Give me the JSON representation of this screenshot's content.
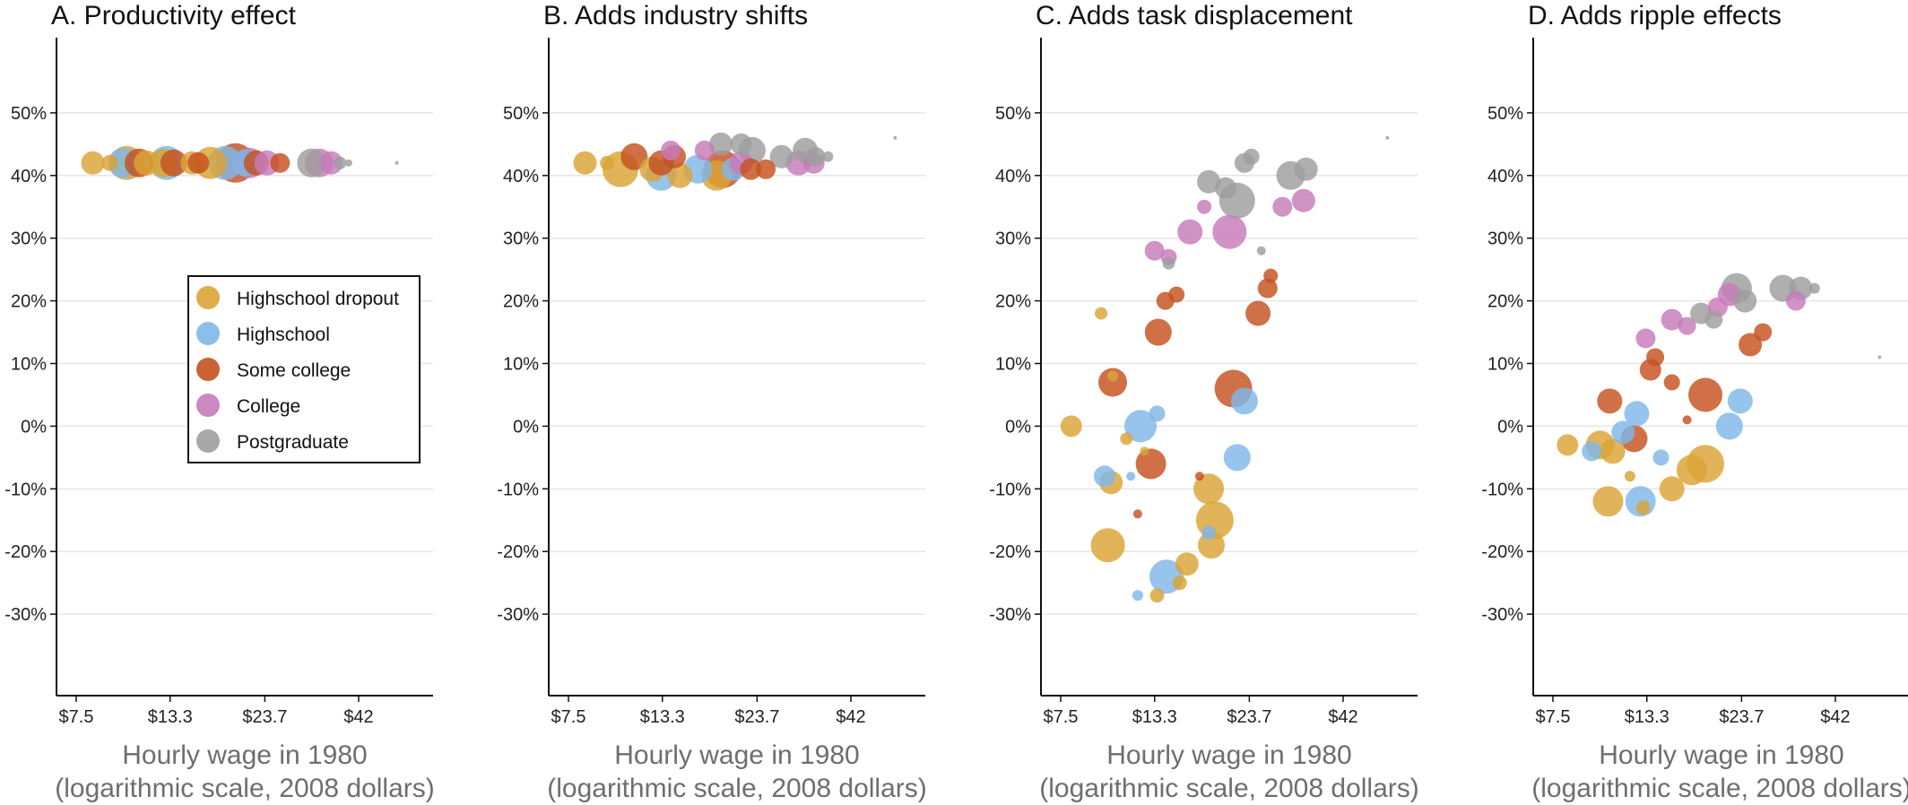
{
  "colors": {
    "Highschool dropout": "#dba434",
    "Highschool": "#7fb7e8",
    "Some college": "#c4511e",
    "College": "#c77bba",
    "Postgraduate": "#9e9e9e"
  },
  "legend": [
    "Highschool dropout",
    "Highschool",
    "Some college",
    "College",
    "Postgraduate"
  ],
  "chart_data": [
    {
      "type": "scatter",
      "title": "A. Productivity effect",
      "xlabel": "Hourly wage in 1980",
      "xlabel2": "(logarithmic scale, 2008 dollars)",
      "xscale": "log",
      "xticks": [
        7.5,
        13.3,
        23.7,
        42
      ],
      "xtick_labels": [
        "$7.5",
        "$13.3",
        "$23.7",
        "$42"
      ],
      "yticks": [
        50,
        40,
        30,
        20,
        10,
        0,
        -10,
        -20,
        -30
      ],
      "ytick_labels": [
        "50%",
        "40%",
        "30%",
        "20%",
        "10%",
        "0%",
        "-10%",
        "-20%",
        "-30%"
      ],
      "ylim": [
        -43,
        62
      ],
      "grid": true,
      "legend_position": "inside-center",
      "points": [
        {
          "g": "Highschool dropout",
          "x": 8.3,
          "y": 42,
          "s": 13
        },
        {
          "g": "Highschool dropout",
          "x": 9.2,
          "y": 42,
          "s": 9
        },
        {
          "g": "Highschool dropout",
          "x": 10.2,
          "y": 42,
          "s": 19
        },
        {
          "g": "Highschool dropout",
          "x": 11.5,
          "y": 42,
          "s": 14
        },
        {
          "g": "Highschool dropout",
          "x": 12.8,
          "y": 42,
          "s": 16
        },
        {
          "g": "Highschool dropout",
          "x": 15.2,
          "y": 42,
          "s": 13
        },
        {
          "g": "Highschool dropout",
          "x": 17.0,
          "y": 42,
          "s": 18
        },
        {
          "g": "Highschool",
          "x": 10.0,
          "y": 42,
          "s": 17
        },
        {
          "g": "Highschool",
          "x": 13.0,
          "y": 42,
          "s": 19
        },
        {
          "g": "Highschool",
          "x": 18.6,
          "y": 42,
          "s": 19
        },
        {
          "g": "Highschool",
          "x": 21.0,
          "y": 42,
          "s": 15
        },
        {
          "g": "Some college",
          "x": 11.0,
          "y": 42,
          "s": 16
        },
        {
          "g": "Some college",
          "x": 13.6,
          "y": 42,
          "s": 15
        },
        {
          "g": "Some college",
          "x": 15.8,
          "y": 42,
          "s": 12
        },
        {
          "g": "Some college",
          "x": 19.8,
          "y": 42,
          "s": 22
        },
        {
          "g": "Some college",
          "x": 22.5,
          "y": 42,
          "s": 14
        },
        {
          "g": "Some college",
          "x": 26.0,
          "y": 42,
          "s": 11
        },
        {
          "g": "College",
          "x": 21.6,
          "y": 42,
          "s": 17
        },
        {
          "g": "College",
          "x": 24.0,
          "y": 42,
          "s": 14
        },
        {
          "g": "College",
          "x": 33.0,
          "y": 42,
          "s": 16
        },
        {
          "g": "College",
          "x": 35.5,
          "y": 42,
          "s": 13
        },
        {
          "g": "Postgraduate",
          "x": 31.5,
          "y": 42,
          "s": 16
        },
        {
          "g": "Postgraduate",
          "x": 37.5,
          "y": 42,
          "s": 7
        },
        {
          "g": "Postgraduate",
          "x": 39.5,
          "y": 42,
          "s": 4
        },
        {
          "g": "Postgraduate",
          "x": 53.0,
          "y": 42,
          "s": 2
        }
      ]
    },
    {
      "type": "scatter",
      "title": "B. Adds industry shifts",
      "xlabel": "Hourly wage in 1980",
      "xlabel2": "(logarithmic scale, 2008 dollars)",
      "xscale": "log",
      "xticks": [
        7.5,
        13.3,
        23.7,
        42
      ],
      "xtick_labels": [
        "$7.5",
        "$13.3",
        "$23.7",
        "$42"
      ],
      "yticks": [
        50,
        40,
        30,
        20,
        10,
        0,
        -10,
        -20,
        -30
      ],
      "ytick_labels": [
        "50%",
        "40%",
        "30%",
        "20%",
        "10%",
        "0%",
        "-10%",
        "-20%",
        "-30%"
      ],
      "ylim": [
        -43,
        62
      ],
      "grid": true,
      "points": [
        {
          "g": "Highschool dropout",
          "x": 8.3,
          "y": 42,
          "s": 13
        },
        {
          "g": "Highschool dropout",
          "x": 9.5,
          "y": 42,
          "s": 8
        },
        {
          "g": "Highschool dropout",
          "x": 10.3,
          "y": 41,
          "s": 20
        },
        {
          "g": "Highschool dropout",
          "x": 12.5,
          "y": 41,
          "s": 14
        },
        {
          "g": "Highschool dropout",
          "x": 14.8,
          "y": 40,
          "s": 14
        },
        {
          "g": "Highschool dropout",
          "x": 18.5,
          "y": 40,
          "s": 17
        },
        {
          "g": "Highschool",
          "x": 13.2,
          "y": 40,
          "s": 17
        },
        {
          "g": "Highschool",
          "x": 16.5,
          "y": 41,
          "s": 16
        },
        {
          "g": "Highschool",
          "x": 20.5,
          "y": 41,
          "s": 13
        },
        {
          "g": "Some college",
          "x": 11.2,
          "y": 43,
          "s": 15
        },
        {
          "g": "Some college",
          "x": 13.2,
          "y": 42,
          "s": 14
        },
        {
          "g": "Some college",
          "x": 14.3,
          "y": 43,
          "s": 13
        },
        {
          "g": "Some college",
          "x": 19.2,
          "y": 41,
          "s": 21
        },
        {
          "g": "Some college",
          "x": 22.8,
          "y": 41,
          "s": 12
        },
        {
          "g": "Some college",
          "x": 25.0,
          "y": 41,
          "s": 11
        },
        {
          "g": "College",
          "x": 14.0,
          "y": 44,
          "s": 11
        },
        {
          "g": "College",
          "x": 17.2,
          "y": 44,
          "s": 11
        },
        {
          "g": "College",
          "x": 21.5,
          "y": 42,
          "s": 13
        },
        {
          "g": "College",
          "x": 30.5,
          "y": 42,
          "s": 14
        },
        {
          "g": "College",
          "x": 33.5,
          "y": 42,
          "s": 12
        },
        {
          "g": "Postgraduate",
          "x": 19.0,
          "y": 45,
          "s": 13
        },
        {
          "g": "Postgraduate",
          "x": 21.5,
          "y": 45,
          "s": 12
        },
        {
          "g": "Postgraduate",
          "x": 23.0,
          "y": 44,
          "s": 15
        },
        {
          "g": "Postgraduate",
          "x": 27.5,
          "y": 43,
          "s": 13
        },
        {
          "g": "Postgraduate",
          "x": 31.8,
          "y": 44,
          "s": 14
        },
        {
          "g": "Postgraduate",
          "x": 33.8,
          "y": 43,
          "s": 11
        },
        {
          "g": "Postgraduate",
          "x": 36.5,
          "y": 43,
          "s": 6
        },
        {
          "g": "Postgraduate",
          "x": 55.0,
          "y": 46,
          "s": 2
        }
      ]
    },
    {
      "type": "scatter",
      "title": "C. Adds task displacement",
      "xlabel": "Hourly wage in 1980",
      "xlabel2": "(logarithmic scale, 2008 dollars)",
      "xscale": "log",
      "xticks": [
        7.5,
        13.3,
        23.7,
        42
      ],
      "xtick_labels": [
        "$7.5",
        "$13.3",
        "$23.7",
        "$42"
      ],
      "yticks": [
        50,
        40,
        30,
        20,
        10,
        0,
        -10,
        -20,
        -30
      ],
      "ytick_labels": [
        "50%",
        "40%",
        "30%",
        "20%",
        "10%",
        "0%",
        "-10%",
        "-20%",
        "-30%"
      ],
      "ylim": [
        -43,
        62
      ],
      "grid": true,
      "points": [
        {
          "g": "Highschool dropout",
          "x": 8.0,
          "y": 0,
          "s": 12
        },
        {
          "g": "Highschool dropout",
          "x": 10.2,
          "y": -9,
          "s": 13
        },
        {
          "g": "Highschool dropout",
          "x": 10.0,
          "y": -19,
          "s": 19
        },
        {
          "g": "Highschool dropout",
          "x": 9.6,
          "y": 18,
          "s": 7
        },
        {
          "g": "Highschool dropout",
          "x": 10.3,
          "y": 8,
          "s": 6
        },
        {
          "g": "Highschool dropout",
          "x": 11.2,
          "y": -2,
          "s": 7
        },
        {
          "g": "Highschool dropout",
          "x": 13.5,
          "y": -27,
          "s": 8
        },
        {
          "g": "Highschool dropout",
          "x": 15.5,
          "y": -25,
          "s": 8
        },
        {
          "g": "Highschool dropout",
          "x": 16.2,
          "y": -22,
          "s": 13
        },
        {
          "g": "Highschool dropout",
          "x": 18.5,
          "y": -10,
          "s": 17
        },
        {
          "g": "Highschool dropout",
          "x": 19.2,
          "y": -15,
          "s": 21
        },
        {
          "g": "Highschool dropout",
          "x": 18.8,
          "y": -19,
          "s": 15
        },
        {
          "g": "Highschool dropout",
          "x": 12.5,
          "y": -4,
          "s": 5
        },
        {
          "g": "Highschool",
          "x": 9.8,
          "y": -8,
          "s": 12
        },
        {
          "g": "Highschool",
          "x": 12.2,
          "y": 0,
          "s": 18
        },
        {
          "g": "Highschool",
          "x": 13.5,
          "y": 2,
          "s": 9
        },
        {
          "g": "Highschool",
          "x": 14.3,
          "y": -24,
          "s": 19
        },
        {
          "g": "Highschool",
          "x": 12.0,
          "y": -27,
          "s": 6
        },
        {
          "g": "Highschool",
          "x": 18.5,
          "y": -17,
          "s": 8
        },
        {
          "g": "Highschool",
          "x": 22.0,
          "y": -5,
          "s": 15
        },
        {
          "g": "Highschool",
          "x": 23.0,
          "y": 4,
          "s": 15
        },
        {
          "g": "Highschool",
          "x": 11.5,
          "y": -8,
          "s": 5
        },
        {
          "g": "Some college",
          "x": 10.3,
          "y": 7,
          "s": 16
        },
        {
          "g": "Some college",
          "x": 13.0,
          "y": -6,
          "s": 17
        },
        {
          "g": "Some college",
          "x": 13.6,
          "y": 15,
          "s": 15
        },
        {
          "g": "Some college",
          "x": 14.2,
          "y": 20,
          "s": 10
        },
        {
          "g": "Some college",
          "x": 15.2,
          "y": 21,
          "s": 9
        },
        {
          "g": "Some college",
          "x": 21.5,
          "y": 6,
          "s": 21
        },
        {
          "g": "Some college",
          "x": 25.0,
          "y": 18,
          "s": 14
        },
        {
          "g": "Some college",
          "x": 26.5,
          "y": 22,
          "s": 11
        },
        {
          "g": "Some college",
          "x": 27.0,
          "y": 24,
          "s": 8
        },
        {
          "g": "Some college",
          "x": 12.0,
          "y": -14,
          "s": 5
        },
        {
          "g": "Some college",
          "x": 17.5,
          "y": -8,
          "s": 5
        },
        {
          "g": "College",
          "x": 13.3,
          "y": 28,
          "s": 11
        },
        {
          "g": "College",
          "x": 14.5,
          "y": 27,
          "s": 9
        },
        {
          "g": "College",
          "x": 16.5,
          "y": 31,
          "s": 14
        },
        {
          "g": "College",
          "x": 21.0,
          "y": 31,
          "s": 19
        },
        {
          "g": "College",
          "x": 18.0,
          "y": 35,
          "s": 8
        },
        {
          "g": "College",
          "x": 29.0,
          "y": 35,
          "s": 11
        },
        {
          "g": "College",
          "x": 33.0,
          "y": 36,
          "s": 13
        },
        {
          "g": "Postgraduate",
          "x": 14.5,
          "y": 26,
          "s": 7
        },
        {
          "g": "Postgraduate",
          "x": 18.5,
          "y": 39,
          "s": 13
        },
        {
          "g": "Postgraduate",
          "x": 20.5,
          "y": 38,
          "s": 12
        },
        {
          "g": "Postgraduate",
          "x": 22.0,
          "y": 36,
          "s": 20
        },
        {
          "g": "Postgraduate",
          "x": 23.0,
          "y": 42,
          "s": 11
        },
        {
          "g": "Postgraduate",
          "x": 24.0,
          "y": 43,
          "s": 9
        },
        {
          "g": "Postgraduate",
          "x": 30.5,
          "y": 40,
          "s": 16
        },
        {
          "g": "Postgraduate",
          "x": 33.5,
          "y": 41,
          "s": 13
        },
        {
          "g": "Postgraduate",
          "x": 25.5,
          "y": 28,
          "s": 5
        },
        {
          "g": "Postgraduate",
          "x": 55.0,
          "y": 46,
          "s": 2
        }
      ]
    },
    {
      "type": "scatter",
      "title": "D. Adds ripple effects",
      "xlabel": "Hourly wage in 1980",
      "xlabel2": "(logarithmic scale, 2008 dollars)",
      "xscale": "log",
      "xticks": [
        7.5,
        13.3,
        23.7,
        42
      ],
      "xtick_labels": [
        "$7.5",
        "$13.3",
        "$23.7",
        "$42"
      ],
      "yticks": [
        50,
        40,
        30,
        20,
        10,
        0,
        -10,
        -20,
        -30
      ],
      "ytick_labels": [
        "50%",
        "40%",
        "30%",
        "20%",
        "10%",
        "0%",
        "-10%",
        "-20%",
        "-30%"
      ],
      "ylim": [
        -43,
        62
      ],
      "grid": true,
      "points": [
        {
          "g": "Highschool dropout",
          "x": 8.2,
          "y": -3,
          "s": 12
        },
        {
          "g": "Highschool dropout",
          "x": 10.0,
          "y": -3,
          "s": 16
        },
        {
          "g": "Highschool dropout",
          "x": 10.8,
          "y": -4,
          "s": 14
        },
        {
          "g": "Highschool dropout",
          "x": 10.5,
          "y": -12,
          "s": 17
        },
        {
          "g": "Highschool dropout",
          "x": 13.0,
          "y": -13,
          "s": 8
        },
        {
          "g": "Highschool dropout",
          "x": 15.5,
          "y": -10,
          "s": 14
        },
        {
          "g": "Highschool dropout",
          "x": 17.5,
          "y": -7,
          "s": 17
        },
        {
          "g": "Highschool dropout",
          "x": 19.0,
          "y": -6,
          "s": 21
        },
        {
          "g": "Highschool dropout",
          "x": 12.0,
          "y": -8,
          "s": 6
        },
        {
          "g": "Highschool",
          "x": 9.5,
          "y": -4,
          "s": 11
        },
        {
          "g": "Highschool",
          "x": 11.5,
          "y": -1,
          "s": 13
        },
        {
          "g": "Highschool",
          "x": 12.5,
          "y": 2,
          "s": 14
        },
        {
          "g": "Highschool",
          "x": 12.8,
          "y": -12,
          "s": 17
        },
        {
          "g": "Highschool",
          "x": 14.5,
          "y": -5,
          "s": 9
        },
        {
          "g": "Highschool",
          "x": 22.0,
          "y": 0,
          "s": 15
        },
        {
          "g": "Highschool",
          "x": 23.5,
          "y": 4,
          "s": 14
        },
        {
          "g": "Some college",
          "x": 10.6,
          "y": 4,
          "s": 14
        },
        {
          "g": "Some college",
          "x": 12.3,
          "y": -2,
          "s": 15
        },
        {
          "g": "Some college",
          "x": 13.6,
          "y": 9,
          "s": 12
        },
        {
          "g": "Some college",
          "x": 14.0,
          "y": 11,
          "s": 10
        },
        {
          "g": "Some college",
          "x": 15.5,
          "y": 7,
          "s": 9
        },
        {
          "g": "Some college",
          "x": 19.0,
          "y": 5,
          "s": 19
        },
        {
          "g": "Some college",
          "x": 25.0,
          "y": 13,
          "s": 13
        },
        {
          "g": "Some college",
          "x": 27.0,
          "y": 15,
          "s": 10
        },
        {
          "g": "Some college",
          "x": 17.0,
          "y": 1,
          "s": 5
        },
        {
          "g": "College",
          "x": 13.2,
          "y": 14,
          "s": 11
        },
        {
          "g": "College",
          "x": 15.5,
          "y": 17,
          "s": 12
        },
        {
          "g": "College",
          "x": 17.0,
          "y": 16,
          "s": 10
        },
        {
          "g": "College",
          "x": 20.5,
          "y": 19,
          "s": 11
        },
        {
          "g": "College",
          "x": 22.0,
          "y": 21,
          "s": 13
        },
        {
          "g": "College",
          "x": 33.0,
          "y": 20,
          "s": 11
        },
        {
          "g": "Postgraduate",
          "x": 18.5,
          "y": 18,
          "s": 12
        },
        {
          "g": "Postgraduate",
          "x": 20.0,
          "y": 17,
          "s": 10
        },
        {
          "g": "Postgraduate",
          "x": 23.0,
          "y": 22,
          "s": 17
        },
        {
          "g": "Postgraduate",
          "x": 24.2,
          "y": 20,
          "s": 13
        },
        {
          "g": "Postgraduate",
          "x": 30.5,
          "y": 22,
          "s": 15
        },
        {
          "g": "Postgraduate",
          "x": 34.0,
          "y": 22,
          "s": 13
        },
        {
          "g": "Postgraduate",
          "x": 37.0,
          "y": 22,
          "s": 6
        },
        {
          "g": "Postgraduate",
          "x": 55.0,
          "y": 11,
          "s": 2
        }
      ]
    }
  ]
}
